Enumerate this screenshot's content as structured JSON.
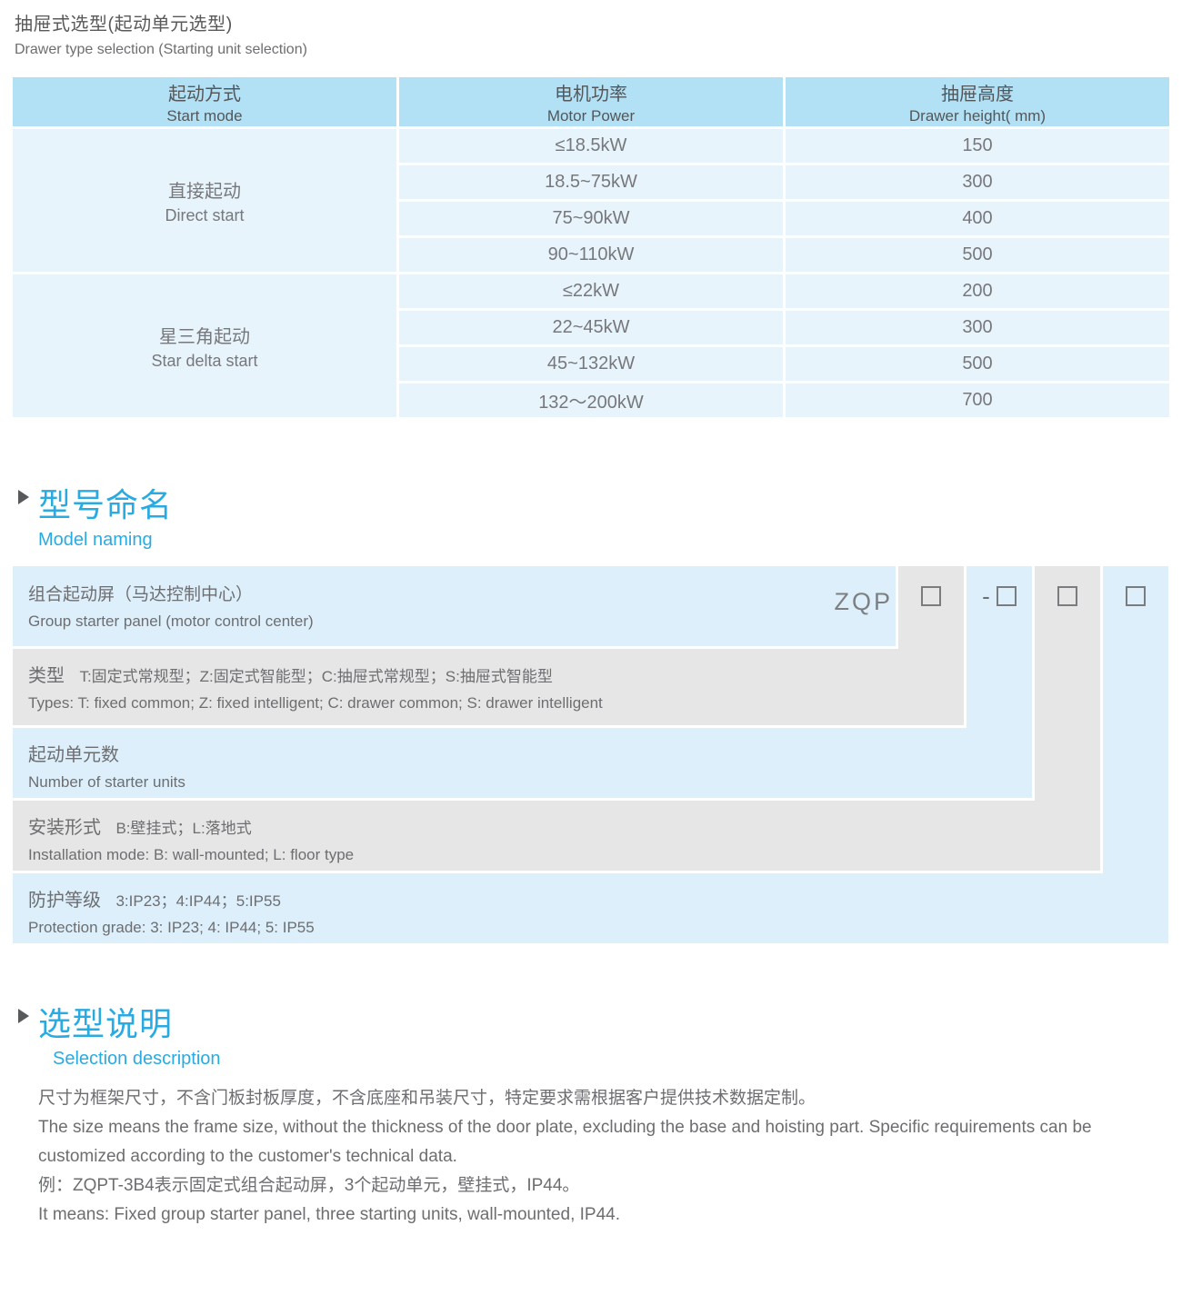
{
  "page": {
    "title_cn": "抽屉式选型(起动单元选型)",
    "title_en": "Drawer type selection (Starting unit selection)"
  },
  "selection_table": {
    "columns": [
      {
        "cn": "起动方式",
        "en": "Start mode"
      },
      {
        "cn": "电机功率",
        "en": "Motor Power"
      },
      {
        "cn": "抽屉高度",
        "en": "Drawer height( mm)"
      }
    ],
    "groups": [
      {
        "name_cn": "直接起动",
        "name_en": "Direct start",
        "rows": [
          {
            "power": "≤18.5kW",
            "height": "150"
          },
          {
            "power": "18.5~75kW",
            "height": "300"
          },
          {
            "power": "75~90kW",
            "height": "400"
          },
          {
            "power": "90~110kW",
            "height": "500"
          }
        ]
      },
      {
        "name_cn": "星三角起动",
        "name_en": "Star delta start",
        "rows": [
          {
            "power": "≤22kW",
            "height": "200"
          },
          {
            "power": "22~45kW",
            "height": "300"
          },
          {
            "power": "45~132kW",
            "height": "500"
          },
          {
            "power": "132～200kW",
            "height": "700"
          }
        ]
      }
    ]
  },
  "model_naming": {
    "heading_cn": "型号命名",
    "heading_en": "Model naming",
    "code_prefix": "ZQP",
    "dash": "-",
    "rows": [
      {
        "cn": "组合起动屏（马达控制中心）",
        "en": "Group starter panel (motor control center)"
      },
      {
        "label_cn": "类型",
        "detail_cn": "T:固定式常规型；Z:固定式智能型；C:抽屉式常规型；S:抽屉式智能型",
        "en": "Types: T: fixed common; Z: fixed intelligent; C: drawer common; S: drawer intelligent"
      },
      {
        "label_cn": "起动单元数",
        "en": "Number of starter units"
      },
      {
        "label_cn": "安装形式",
        "detail_cn": "B:壁挂式；L:落地式",
        "en": "Installation mode: B: wall-mounted; L: floor type"
      },
      {
        "label_cn": "防护等级",
        "detail_cn": "3:IP23；4:IP44；5:IP55",
        "en": "Protection grade:  3: IP23; 4: IP44; 5: IP55"
      }
    ]
  },
  "selection_description": {
    "heading_cn": "选型说明",
    "heading_en": "Selection description",
    "paragraphs": [
      "尺寸为框架尺寸，不含门板封板厚度，不含底座和吊装尺寸，特定要求需根据客户提供技术数据定制。",
      "The size means the frame size, without the thickness of the door plate, excluding the base and hoisting part. Specific requirements can be customized according to the customer's technical data.",
      "例：ZQPT-3B4表示固定式组合起动屏，3个起动单元，壁挂式，IP44。",
      "It means: Fixed group starter panel, three starting units, wall-mounted, IP44."
    ]
  },
  "colors": {
    "accent_blue": "#29abe2",
    "table_header_bg": "#b2e1f5",
    "table_row_bg": "#e8f4fb",
    "diagram_blue_bg": "#ddeffa",
    "diagram_gray_bg": "#e6e6e6",
    "text_dark": "#58595b",
    "text_gray": "#6d6e71"
  }
}
